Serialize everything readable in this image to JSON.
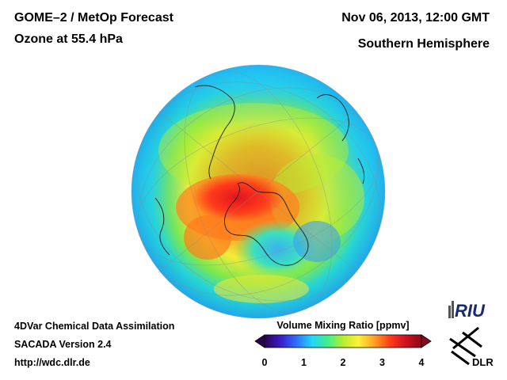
{
  "header": {
    "title_line1": "GOME–2 / MetOp Forecast",
    "title_line2": "Ozone at 55.4 hPa",
    "date": "Nov 06, 2013, 12:00 GMT",
    "region": "Southern Hemisphere"
  },
  "footer": {
    "line1": "4DVar Chemical Data Assimilation",
    "line2": "SACADA Version 2.4",
    "url": "http://wdc.dlr.de"
  },
  "colorbar": {
    "label": "Volume Mixing Ratio [ppmv]",
    "ticks": [
      "0",
      "1",
      "2",
      "3",
      "4"
    ],
    "range": [
      0,
      4
    ],
    "colors": [
      "#2a0050",
      "#3a1cc8",
      "#2f6cff",
      "#22d4ff",
      "#3cf08a",
      "#b6ee2e",
      "#fff03a",
      "#ffa020",
      "#ff3a1a",
      "#d01020",
      "#8a0a18"
    ]
  },
  "logos": {
    "riu": "RIU",
    "dlr": "DLR"
  },
  "map": {
    "projection": "orthographic-south-polar",
    "ozone_regions": [
      {
        "name": "ozone-max-core",
        "value": 3.6
      },
      {
        "name": "ozone-high-belt",
        "value": 3.0
      },
      {
        "name": "ozone-mid-belt",
        "value": 2.4
      },
      {
        "name": "ozone-low-tropics",
        "value": 1.2
      },
      {
        "name": "ozone-hole-depletion",
        "value": 1.3
      }
    ]
  }
}
